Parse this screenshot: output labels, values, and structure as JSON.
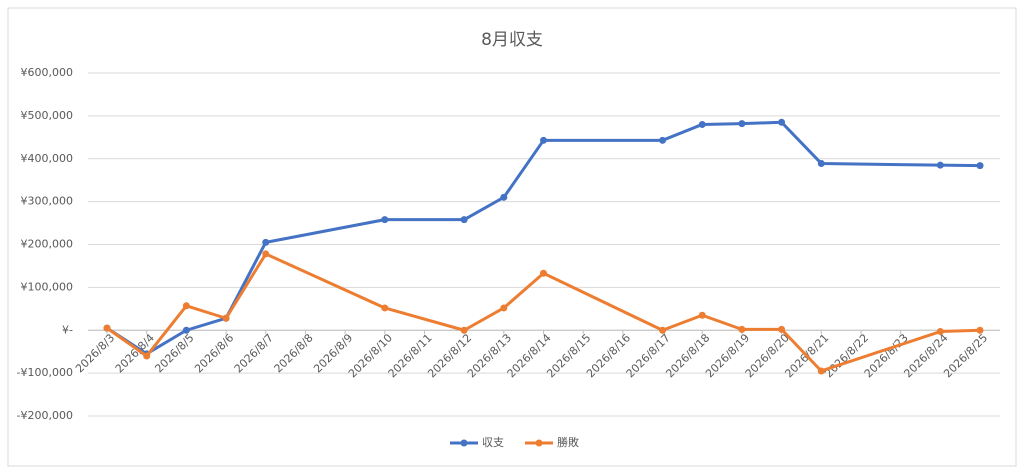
{
  "chart_data": {
    "type": "line",
    "title": "8月収支",
    "x": [
      "2026/8/3",
      "2026/8/4",
      "2026/8/5",
      "2026/8/6",
      "2026/8/7",
      "2026/8/10",
      "2026/8/12",
      "2026/8/13",
      "2026/8/14",
      "2026/8/17",
      "2026/8/18",
      "2026/8/19",
      "2026/8/20",
      "2026/8/21",
      "2026/8/24",
      "2026/8/25"
    ],
    "series": [
      {
        "name": "収支",
        "color": "#4472c4",
        "values": [
          5000,
          -55000,
          0,
          28000,
          205000,
          258000,
          258000,
          310000,
          443000,
          443000,
          480000,
          482000,
          485000,
          389000,
          385000,
          384000
        ]
      },
      {
        "name": "勝敗",
        "color": "#ed7d31",
        "values": [
          5000,
          -60000,
          57000,
          28000,
          178000,
          52000,
          0,
          52000,
          133000,
          0,
          35000,
          2000,
          2000,
          -95000,
          -3000,
          0
        ]
      }
    ],
    "xlim": [
      "2026/8/3",
      "2026/8/25"
    ],
    "xticks": [
      "2026/8/3",
      "2026/8/4",
      "2026/8/5",
      "2026/8/6",
      "2026/8/7",
      "2026/8/8",
      "2026/8/9",
      "2026/8/10",
      "2026/8/11",
      "2026/8/12",
      "2026/8/13",
      "2026/8/14",
      "2026/8/15",
      "2026/8/16",
      "2026/8/17",
      "2026/8/18",
      "2026/8/19",
      "2026/8/20",
      "2026/8/21",
      "2026/8/22",
      "2026/8/23",
      "2026/8/24",
      "2026/8/25"
    ],
    "ylim": [
      -200000,
      600000
    ],
    "yticks": [
      {
        "value": -200000,
        "label": "-¥200,000"
      },
      {
        "value": -100000,
        "label": "-¥100,000"
      },
      {
        "value": 0,
        "label": "¥-"
      },
      {
        "value": 100000,
        "label": "¥100,000"
      },
      {
        "value": 200000,
        "label": "¥200,000"
      },
      {
        "value": 300000,
        "label": "¥300,000"
      },
      {
        "value": 400000,
        "label": "¥400,000"
      },
      {
        "value": 500000,
        "label": "¥500,000"
      },
      {
        "value": 600000,
        "label": "¥600,000"
      }
    ],
    "grid": true,
    "legend": "bottom"
  }
}
